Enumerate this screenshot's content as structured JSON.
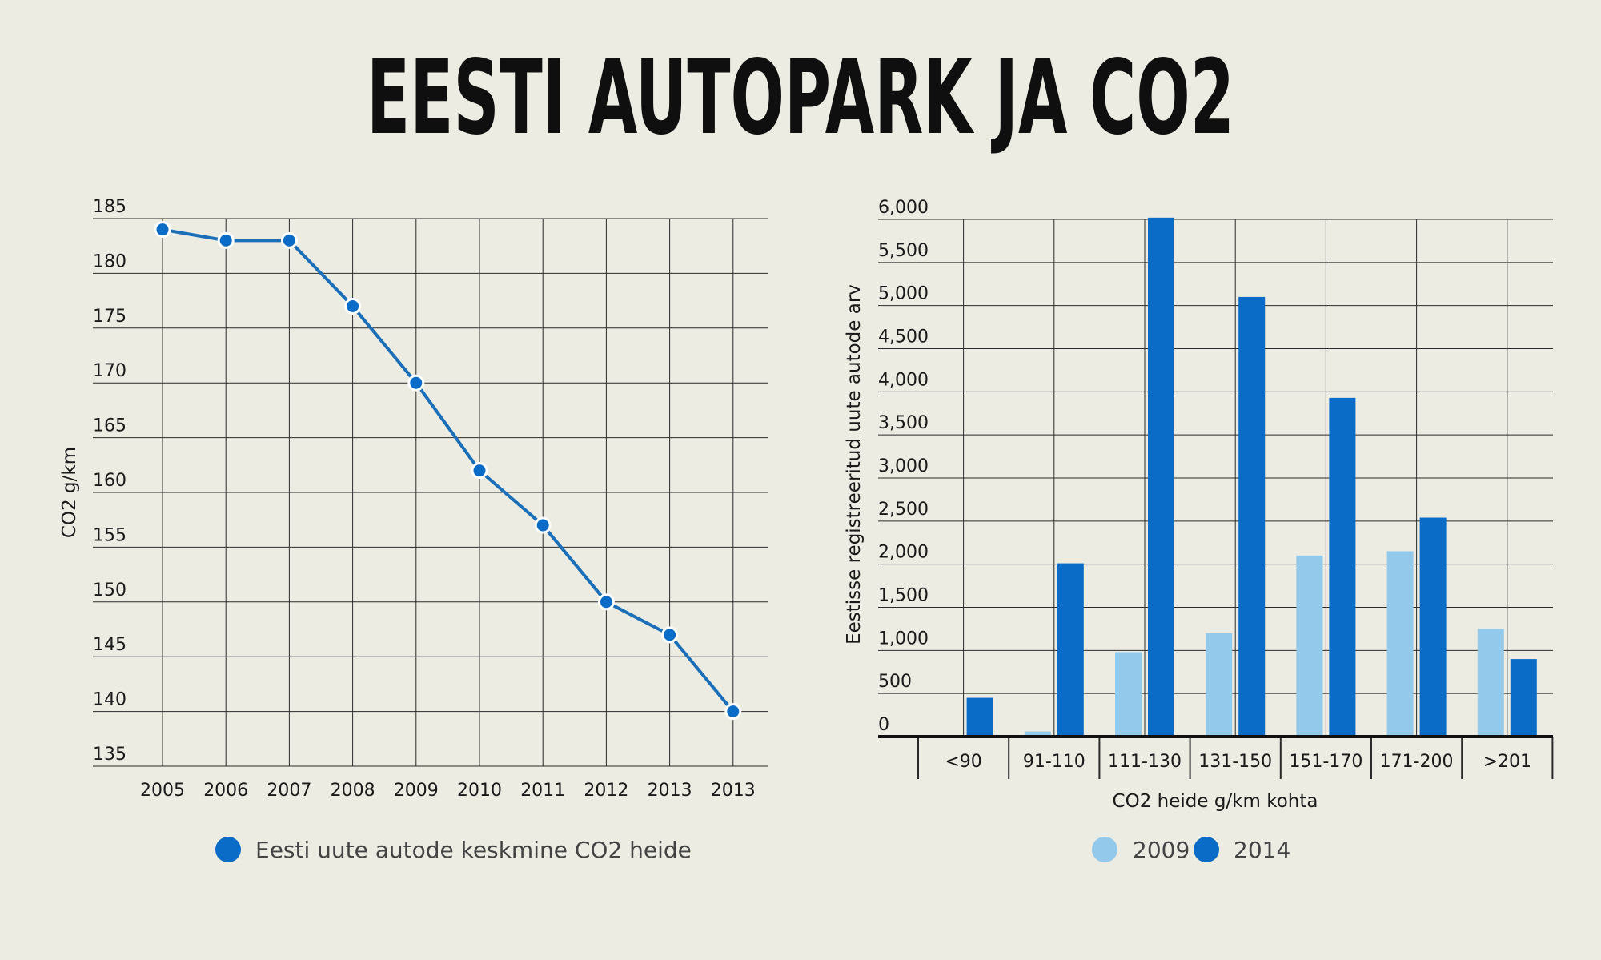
{
  "title": "EESTI AUTOPARK JA CO2",
  "colors": {
    "background": "#ecece3",
    "grid": "#2a2a2a",
    "line": "#1b6fb8",
    "dark_blue": "#0a6cc7",
    "light_blue": "#93c9ea"
  },
  "chart_data": [
    {
      "type": "line",
      "title": "",
      "xlabel": "",
      "ylabel": "CO2 g/km",
      "x": [
        "2005",
        "2006",
        "2007",
        "2008",
        "2009",
        "2010",
        "2011",
        "2012",
        "2013",
        "2013"
      ],
      "series": [
        {
          "name": "Eesti uute autode keskmine CO2 heide",
          "values": [
            184,
            183,
            183,
            177,
            170,
            162,
            157,
            150,
            147,
            140
          ]
        }
      ],
      "ylim": [
        135,
        185
      ],
      "yticks": [
        "185",
        "180",
        "175",
        "170",
        "165",
        "160",
        "155",
        "150",
        "145",
        "140",
        "135"
      ],
      "grid": true,
      "legend": "bottom"
    },
    {
      "type": "bar",
      "title": "",
      "xlabel": "CO2 heide g/km kohta",
      "ylabel": "Eestisse registreeritud uute autode arv",
      "categories": [
        "<90",
        "91-110",
        "111-130",
        "131-150",
        "151-170",
        "171-200",
        ">201"
      ],
      "series": [
        {
          "name": "2009",
          "values": [
            0,
            60,
            980,
            1200,
            2100,
            2150,
            1250
          ]
        },
        {
          "name": "2014",
          "values": [
            450,
            2010,
            6020,
            5100,
            3930,
            2540,
            900
          ]
        }
      ],
      "ylim": [
        0,
        6000
      ],
      "yticks": [
        "0",
        "500",
        "1,000",
        "1,500",
        "2,000",
        "2,500",
        "3,000",
        "3,500",
        "4,000",
        "4,500",
        "5,000",
        "5,500",
        "6,000"
      ],
      "grid": true,
      "legend": "bottom"
    }
  ]
}
